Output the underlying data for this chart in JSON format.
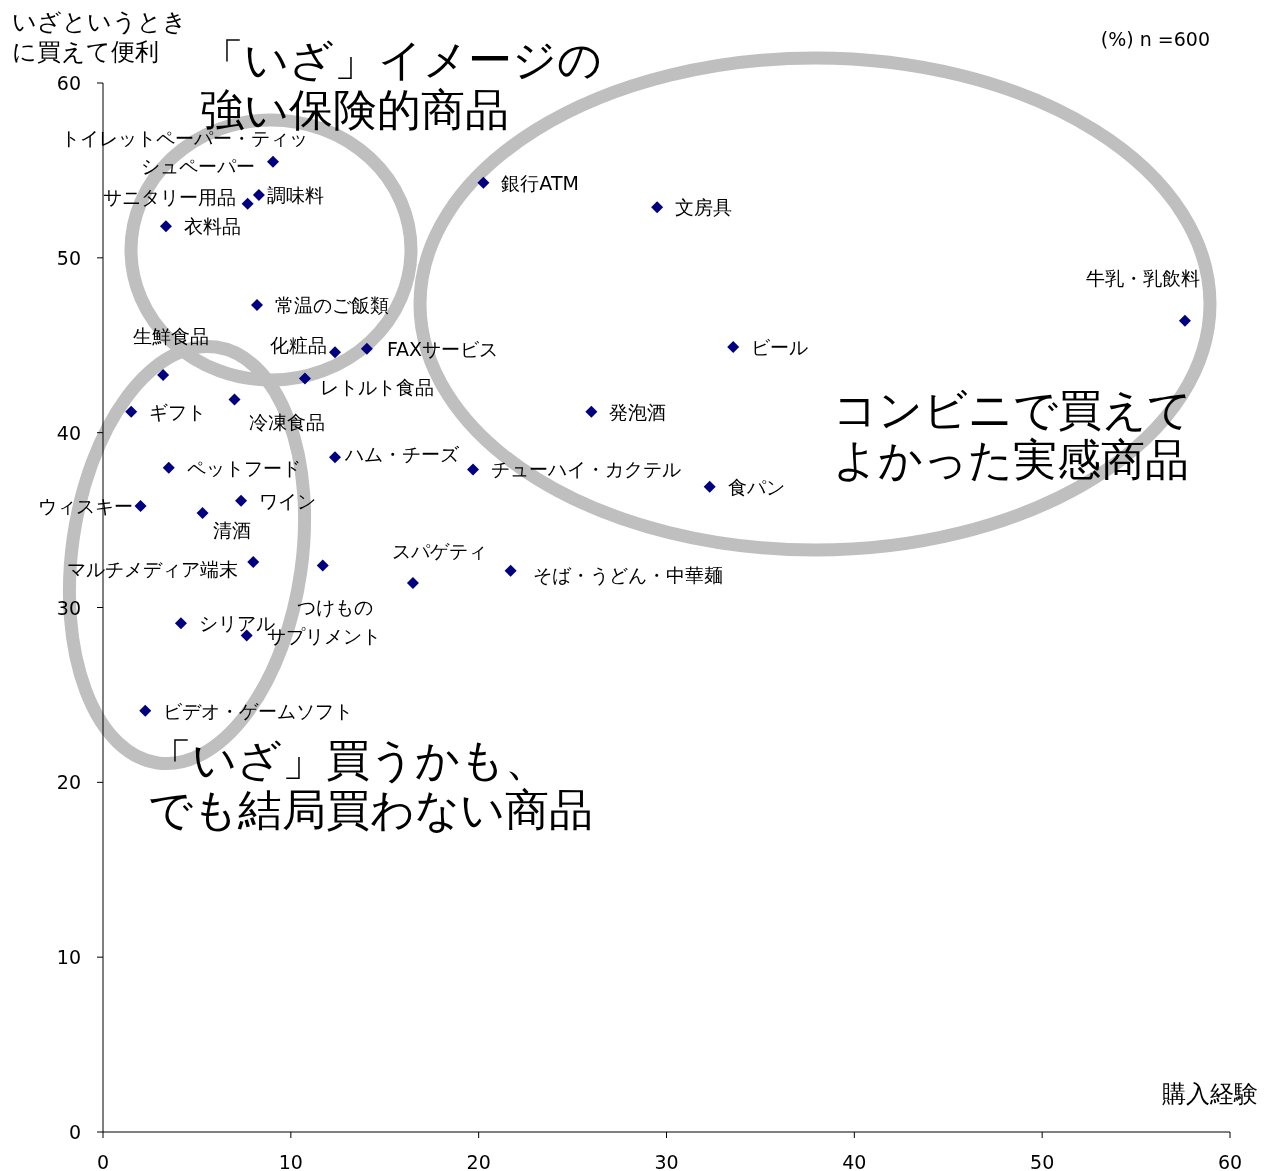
{
  "chart_data": {
    "type": "scatter",
    "ylabel": "いざというときに買えて便利",
    "xlabel": "購入経験",
    "xlim": [
      0,
      60
    ],
    "ylim": [
      0,
      60
    ],
    "xticks": [
      0,
      10,
      20,
      30,
      40,
      50,
      60
    ],
    "yticks": [
      0,
      10,
      20,
      30,
      40,
      50,
      60
    ],
    "grid": false,
    "marker": "diamond",
    "annotations": [
      "(%) n =600",
      "「いざ」イメージの強い保険的商品",
      "コンビニで買えてよかった実感商品",
      "「いざ」買うかも、でも結局買わない商品"
    ],
    "series": [
      {
        "color": "#000080",
        "x": [
          9.05,
          8.3,
          7.7,
          3.35,
          8.2,
          12.35,
          14.05,
          10.75,
          3.2,
          7.0,
          1.5,
          12.35,
          3.5,
          19.7,
          7.35,
          2.0,
          5.3,
          8.0,
          11.7,
          16.5,
          21.7,
          4.15,
          7.65,
          2.25,
          20.25,
          29.5,
          57.6,
          33.55,
          26.0,
          32.3
        ],
        "values": [
          55.5,
          53.6,
          53.1,
          51.8,
          47.3,
          44.6,
          44.8,
          43.1,
          43.3,
          41.9,
          41.2,
          38.6,
          38.0,
          37.9,
          36.1,
          35.8,
          35.4,
          32.6,
          32.4,
          31.4,
          32.1,
          29.1,
          28.4,
          24.1,
          54.3,
          52.9,
          46.4,
          44.9,
          41.2,
          36.9
        ],
        "value_labels": [
          "トイレットペーパー・ティッシュペーパー",
          "調味料",
          "サニタリー用品",
          "衣料品",
          "常温のご飯類",
          "化粧品",
          "FAXサービス",
          "レトルト食品",
          "生鮮食品",
          "冷凍食品",
          "ギフト",
          "ハム・チーズ",
          "ペットフード",
          "チューハイ・カクテル",
          "ワイン",
          "ウィスキー",
          "清酒",
          "マルチメディア端末",
          "つけもの",
          "スパゲティ",
          "そば・うどん・中華麺",
          "シリアル",
          "サプリメント",
          "ビデオ・ゲームソフト",
          "銀行ATM",
          "文房具",
          "牛乳・乳飲料",
          "ビール",
          "発泡酒",
          "食パン"
        ]
      }
    ]
  }
}
